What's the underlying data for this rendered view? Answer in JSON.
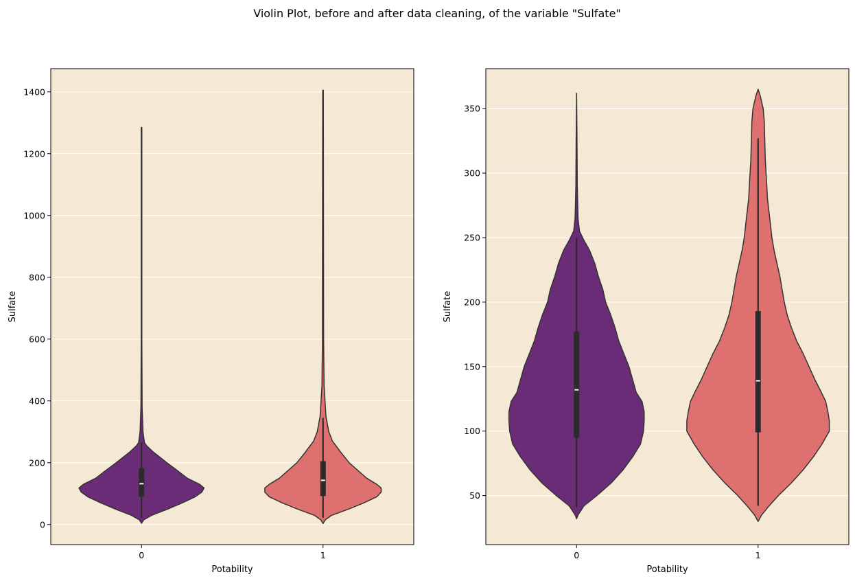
{
  "figure": {
    "title": "Violin Plot, before and after data cleaning, of the variable \"Sulfate\""
  },
  "style": {
    "plot_background": "#f5e9d5",
    "grid_color": "#ffffff",
    "series_colors": [
      "#6a2c77",
      "#de7170"
    ],
    "outline_color": "#333333",
    "box_color": "#2b2b2b",
    "median_color": "#ffffff"
  },
  "chart_data": [
    {
      "type": "violin",
      "title": "",
      "xlabel": "Potability",
      "ylabel": "Sulfate",
      "categories": [
        "0",
        "1"
      ],
      "ylim": [
        -65,
        1475
      ],
      "yticks": [
        0,
        200,
        400,
        600,
        800,
        1000,
        1200,
        1400
      ],
      "grid": "horizontal",
      "violins": [
        {
          "category": "0",
          "min": 4,
          "max": 1285,
          "q1": 90,
          "median": 132,
          "q3": 182,
          "whisker_low": 22,
          "whisker_high": 265,
          "density": [
            [
              4,
              0
            ],
            [
              15,
              0.03
            ],
            [
              30,
              0.14
            ],
            [
              50,
              0.36
            ],
            [
              70,
              0.56
            ],
            [
              90,
              0.74
            ],
            [
              105,
              0.83
            ],
            [
              118,
              0.86
            ],
            [
              130,
              0.8
            ],
            [
              150,
              0.63
            ],
            [
              175,
              0.49
            ],
            [
              200,
              0.35
            ],
            [
              235,
              0.16
            ],
            [
              255,
              0.07
            ],
            [
              265,
              0.04
            ],
            [
              300,
              0.02
            ],
            [
              380,
              0.008
            ],
            [
              600,
              0.004
            ],
            [
              1285,
              0.004
            ]
          ]
        },
        {
          "category": "1",
          "min": 3,
          "max": 1405,
          "q1": 92,
          "median": 143,
          "q3": 205,
          "whisker_low": 22,
          "whisker_high": 345,
          "density": [
            [
              3,
              0
            ],
            [
              15,
              0.03
            ],
            [
              30,
              0.12
            ],
            [
              50,
              0.35
            ],
            [
              70,
              0.56
            ],
            [
              90,
              0.74
            ],
            [
              105,
              0.8
            ],
            [
              118,
              0.8
            ],
            [
              130,
              0.74
            ],
            [
              150,
              0.6
            ],
            [
              175,
              0.48
            ],
            [
              200,
              0.36
            ],
            [
              235,
              0.24
            ],
            [
              270,
              0.13
            ],
            [
              300,
              0.08
            ],
            [
              350,
              0.04
            ],
            [
              450,
              0.015
            ],
            [
              600,
              0.008
            ],
            [
              1405,
              0.004
            ]
          ]
        }
      ]
    },
    {
      "type": "violin",
      "title": "",
      "xlabel": "Potability",
      "ylabel": "Sulfate",
      "categories": [
        "0",
        "1"
      ],
      "ylim": [
        12,
        381
      ],
      "yticks": [
        50,
        100,
        150,
        200,
        250,
        300,
        350
      ],
      "grid": "horizontal",
      "violins": [
        {
          "category": "0",
          "min": 32,
          "max": 362,
          "q1": 95,
          "median": 132,
          "q3": 177,
          "whisker_low": 41,
          "whisker_high": 250,
          "density": [
            [
              32,
              0
            ],
            [
              35,
              0.02
            ],
            [
              42,
              0.1
            ],
            [
              50,
              0.28
            ],
            [
              60,
              0.48
            ],
            [
              70,
              0.64
            ],
            [
              80,
              0.77
            ],
            [
              90,
              0.88
            ],
            [
              100,
              0.92
            ],
            [
              108,
              0.93
            ],
            [
              115,
              0.93
            ],
            [
              123,
              0.9
            ],
            [
              130,
              0.82
            ],
            [
              140,
              0.77
            ],
            [
              150,
              0.72
            ],
            [
              160,
              0.65
            ],
            [
              170,
              0.58
            ],
            [
              180,
              0.53
            ],
            [
              190,
              0.47
            ],
            [
              200,
              0.4
            ],
            [
              210,
              0.36
            ],
            [
              220,
              0.3
            ],
            [
              230,
              0.25
            ],
            [
              240,
              0.18
            ],
            [
              248,
              0.1
            ],
            [
              255,
              0.04
            ],
            [
              265,
              0.02
            ],
            [
              290,
              0.01
            ],
            [
              330,
              0.005
            ],
            [
              362,
              0
            ]
          ]
        },
        {
          "category": "1",
          "min": 30,
          "max": 365,
          "q1": 99,
          "median": 139,
          "q3": 193,
          "whisker_low": 42,
          "whisker_high": 327,
          "density": [
            [
              30,
              0
            ],
            [
              35,
              0.05
            ],
            [
              42,
              0.15
            ],
            [
              50,
              0.28
            ],
            [
              60,
              0.46
            ],
            [
              70,
              0.62
            ],
            [
              80,
              0.76
            ],
            [
              90,
              0.88
            ],
            [
              100,
              0.98
            ],
            [
              108,
              0.98
            ],
            [
              115,
              0.96
            ],
            [
              123,
              0.93
            ],
            [
              130,
              0.87
            ],
            [
              140,
              0.78
            ],
            [
              150,
              0.7
            ],
            [
              160,
              0.62
            ],
            [
              170,
              0.53
            ],
            [
              180,
              0.46
            ],
            [
              190,
              0.4
            ],
            [
              200,
              0.36
            ],
            [
              210,
              0.33
            ],
            [
              220,
              0.3
            ],
            [
              230,
              0.26
            ],
            [
              240,
              0.22
            ],
            [
              250,
              0.19
            ],
            [
              260,
              0.17
            ],
            [
              270,
              0.15
            ],
            [
              280,
              0.13
            ],
            [
              290,
              0.12
            ],
            [
              300,
              0.11
            ],
            [
              310,
              0.1
            ],
            [
              320,
              0.095
            ],
            [
              330,
              0.09
            ],
            [
              340,
              0.085
            ],
            [
              350,
              0.07
            ],
            [
              360,
              0.03
            ],
            [
              365,
              0
            ]
          ]
        }
      ]
    }
  ]
}
